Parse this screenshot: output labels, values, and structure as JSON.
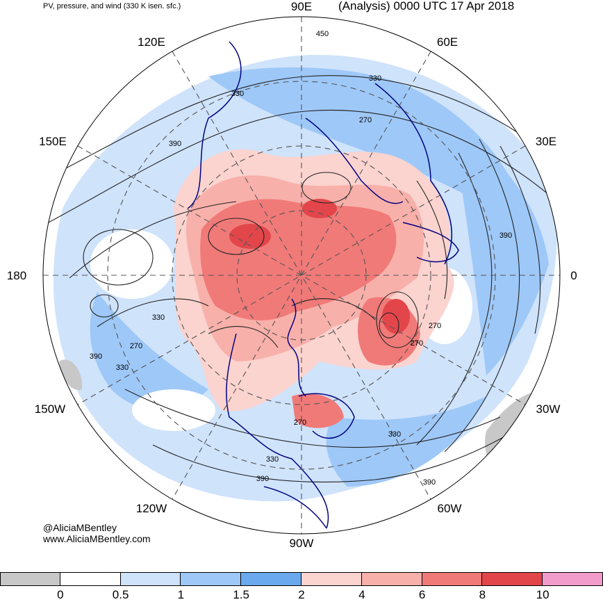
{
  "header": {
    "left_title": "PV, pressure, and wind (330 K isen. sfc.)",
    "right_title": "(Analysis) 0000 UTC 17 Apr 2018"
  },
  "longitude_labels": {
    "e90": "90E",
    "e120": "120E",
    "e60": "60E",
    "e150": "150E",
    "e30": "30E",
    "l180": "180",
    "l0": "0",
    "w150": "150W",
    "w30": "30W",
    "w120": "120W",
    "w60": "60W",
    "w90": "90W"
  },
  "contour_labels": [
    "450",
    "330",
    "390",
    "270",
    "330",
    "390",
    "330",
    "270",
    "390",
    "330",
    "270",
    "270",
    "330",
    "390",
    "270",
    "330",
    "390"
  ],
  "credit": {
    "handle": "@AliciaMBentley",
    "website": "www.AliciaMBentley.com"
  },
  "colors": {
    "land_outline": "#000080",
    "contour": "#222222",
    "grid_dash": "#555555"
  },
  "colorbar": {
    "bins": [
      {
        "color": "#c8c8c8"
      },
      {
        "color": "#ffffff"
      },
      {
        "color": "#cfe3fb"
      },
      {
        "color": "#9ec8f8"
      },
      {
        "color": "#6aa9ee"
      },
      {
        "color": "#fbd3cf"
      },
      {
        "color": "#f8b0aa"
      },
      {
        "color": "#f07a78"
      },
      {
        "color": "#e2464b"
      },
      {
        "color": "#f19ccb"
      }
    ],
    "tick_labels": [
      "0",
      "0.5",
      "1",
      "1.5",
      "2",
      "4",
      "6",
      "8",
      "10"
    ]
  }
}
